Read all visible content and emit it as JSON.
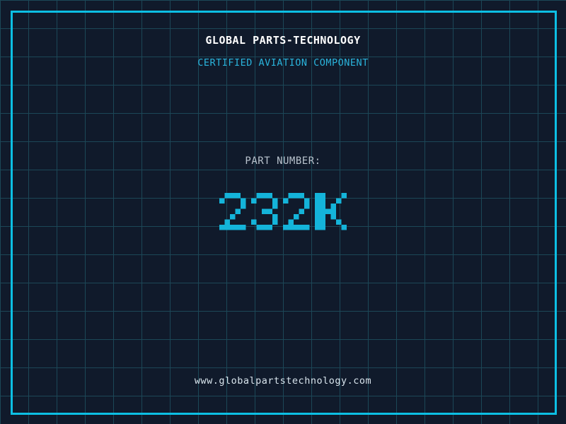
{
  "header": {
    "company": "GLOBAL PARTS-TECHNOLOGY",
    "tagline": "CERTIFIED AVIATION COMPONENT"
  },
  "part": {
    "label": "PART NUMBER:",
    "number": "232K"
  },
  "footer": {
    "website": "www.globalpartstechnology.com"
  },
  "colors": {
    "background": "#101a2b",
    "grid_line": "#1c4757",
    "frame_border": "#0cbfe4",
    "company_text": "#ffffff",
    "tagline_text": "#2ab4dc",
    "part_label_text": "#b9c3cd",
    "part_number_text": "#14b4da",
    "website_text": "#d8e4ec"
  }
}
